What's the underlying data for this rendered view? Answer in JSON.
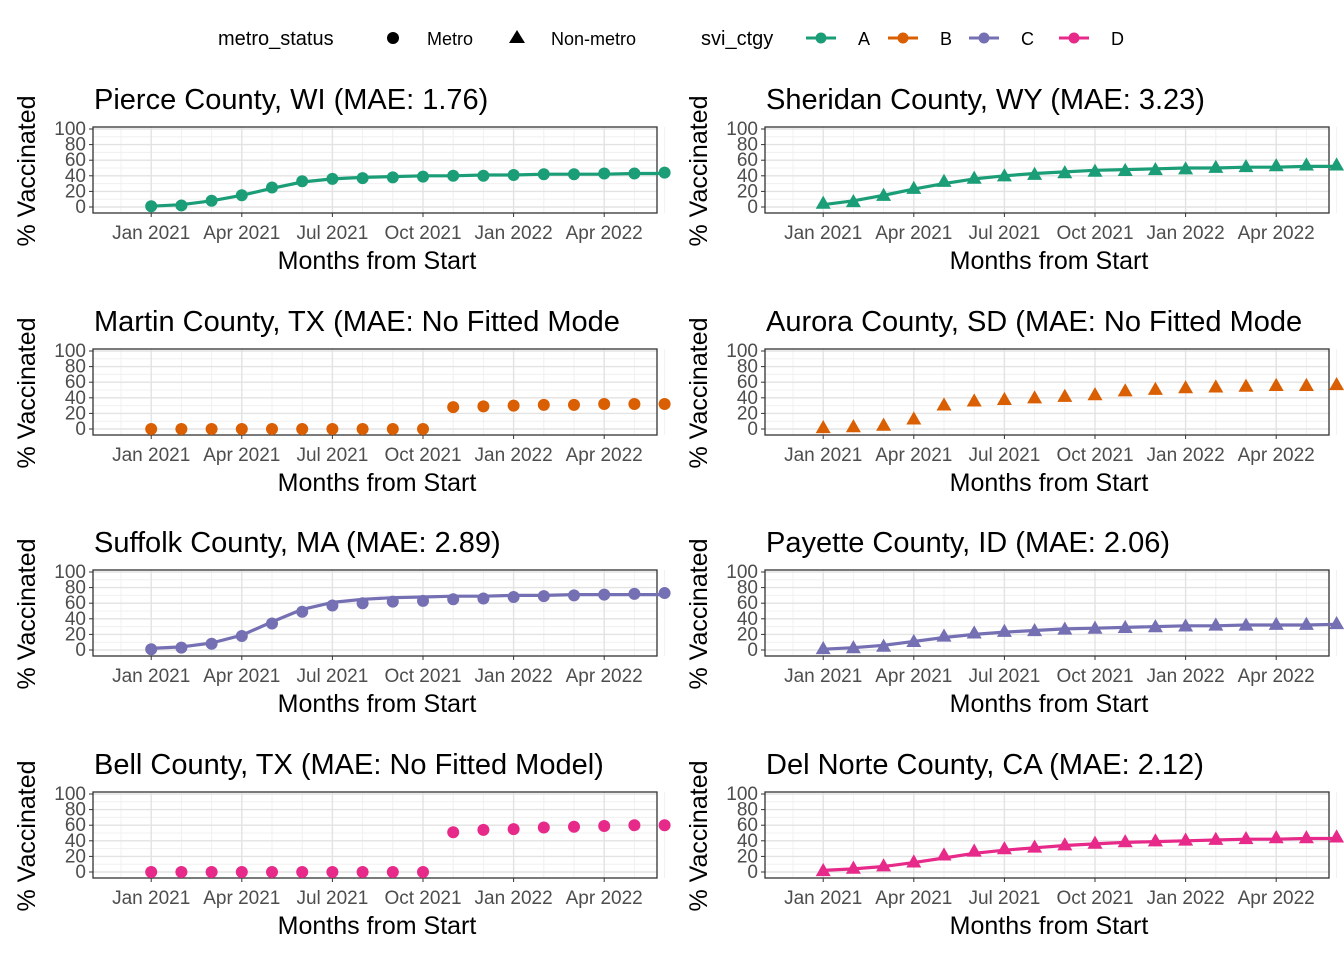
{
  "legend": {
    "shape_title": "metro_status",
    "shape_items": [
      {
        "label": "Metro",
        "shape": "circle"
      },
      {
        "label": "Non-metro",
        "shape": "triangle"
      }
    ],
    "color_title": "svi_ctgy",
    "color_items": [
      {
        "label": "A",
        "color": "#1B9E77"
      },
      {
        "label": "B",
        "color": "#D95F02"
      },
      {
        "label": "C",
        "color": "#7570B3"
      },
      {
        "label": "D",
        "color": "#E7298A"
      }
    ]
  },
  "axes": {
    "xlabel": "Months from Start",
    "ylabel": "% Vaccinated",
    "x_ticks": [
      "Jan 2021",
      "Apr 2021",
      "Jul 2021",
      "Oct 2021",
      "Jan 2022",
      "Apr 2022"
    ],
    "y_ticks": [
      "0",
      "20",
      "40",
      "60",
      "80",
      "100"
    ]
  },
  "chart_data": [
    {
      "type": "line",
      "title": "Pierce County, WI (MAE: 1.76)",
      "xlabel": "Months from Start",
      "ylabel": "% Vaccinated",
      "ylim": [
        0,
        100
      ],
      "svi_ctgy": "A",
      "metro_status": "Metro",
      "x": [
        "2020-12",
        "2021-01",
        "2021-02",
        "2021-03",
        "2021-04",
        "2021-05",
        "2021-06",
        "2021-07",
        "2021-08",
        "2021-09",
        "2021-10",
        "2021-11",
        "2021-12",
        "2022-01",
        "2022-02",
        "2022-03",
        "2022-04",
        "2022-05",
        "2022-06"
      ],
      "observed": [
        null,
        1,
        2,
        8,
        15,
        25,
        33,
        36,
        37,
        38,
        39,
        40,
        40,
        41,
        42,
        42,
        43,
        43,
        44
      ],
      "fitted": [
        null,
        1,
        3,
        8,
        15,
        24,
        32,
        36,
        38,
        39,
        40,
        40,
        41,
        41,
        42,
        42,
        42,
        43,
        43
      ]
    },
    {
      "type": "line",
      "title": "Sheridan County, WY (MAE: 3.23)",
      "xlabel": "Months from Start",
      "ylabel": "% Vaccinated",
      "ylim": [
        0,
        100
      ],
      "svi_ctgy": "A",
      "metro_status": "Non-metro",
      "x": [
        "2020-12",
        "2021-01",
        "2021-02",
        "2021-03",
        "2021-04",
        "2021-05",
        "2021-06",
        "2021-07",
        "2021-08",
        "2021-09",
        "2021-10",
        "2021-11",
        "2021-12",
        "2022-01",
        "2022-02",
        "2022-03",
        "2022-04",
        "2022-05",
        "2022-06"
      ],
      "observed": [
        null,
        5,
        7,
        15,
        24,
        33,
        37,
        40,
        42,
        44,
        46,
        47,
        48,
        49,
        51,
        52,
        53,
        54,
        54
      ],
      "fitted": [
        null,
        3,
        8,
        15,
        23,
        30,
        36,
        40,
        43,
        45,
        47,
        48,
        49,
        50,
        50,
        51,
        51,
        52,
        52
      ]
    },
    {
      "type": "scatter",
      "title": "Martin County, TX (MAE: No Fitted Mode",
      "xlabel": "Months from Start",
      "ylabel": "% Vaccinated",
      "ylim": [
        0,
        100
      ],
      "svi_ctgy": "B",
      "metro_status": "Metro",
      "x": [
        "2020-12",
        "2021-01",
        "2021-02",
        "2021-03",
        "2021-04",
        "2021-05",
        "2021-06",
        "2021-07",
        "2021-08",
        "2021-09",
        "2021-10",
        "2021-11",
        "2021-12",
        "2022-01",
        "2022-02",
        "2022-03",
        "2022-04",
        "2022-05",
        "2022-06"
      ],
      "observed": [
        null,
        0,
        0,
        0,
        0,
        0,
        0,
        0,
        0,
        0,
        0,
        28,
        29,
        30,
        31,
        31,
        32,
        32,
        32
      ]
    },
    {
      "type": "scatter",
      "title": "Aurora County, SD (MAE: No Fitted Mode",
      "xlabel": "Months from Start",
      "ylabel": "% Vaccinated",
      "ylim": [
        0,
        100
      ],
      "svi_ctgy": "B",
      "metro_status": "Non-metro",
      "x": [
        "2020-12",
        "2021-01",
        "2021-02",
        "2021-03",
        "2021-04",
        "2021-05",
        "2021-06",
        "2021-07",
        "2021-08",
        "2021-09",
        "2021-10",
        "2021-11",
        "2021-12",
        "2022-01",
        "2022-02",
        "2022-03",
        "2022-04",
        "2022-05",
        "2022-06"
      ],
      "observed": [
        null,
        2,
        3,
        5,
        13,
        31,
        36,
        38,
        40,
        42,
        44,
        49,
        51,
        53,
        54,
        55,
        56,
        56,
        57
      ]
    },
    {
      "type": "line",
      "title": "Suffolk County, MA (MAE: 2.89)",
      "xlabel": "Months from Start",
      "ylabel": "% Vaccinated",
      "ylim": [
        0,
        100
      ],
      "svi_ctgy": "C",
      "metro_status": "Metro",
      "x": [
        "2020-12",
        "2021-01",
        "2021-02",
        "2021-03",
        "2021-04",
        "2021-05",
        "2021-06",
        "2021-07",
        "2021-08",
        "2021-09",
        "2021-10",
        "2021-11",
        "2021-12",
        "2022-01",
        "2022-02",
        "2022-03",
        "2022-04",
        "2022-05",
        "2022-06"
      ],
      "observed": [
        null,
        1,
        3,
        8,
        18,
        34,
        49,
        57,
        60,
        62,
        63,
        65,
        66,
        68,
        69,
        70,
        71,
        72,
        73
      ],
      "fitted": [
        null,
        2,
        4,
        9,
        19,
        36,
        52,
        61,
        65,
        67,
        68,
        69,
        69,
        70,
        70,
        71,
        71,
        71,
        71
      ]
    },
    {
      "type": "line",
      "title": "Payette County, ID (MAE: 2.06)",
      "xlabel": "Months from Start",
      "ylabel": "% Vaccinated",
      "ylim": [
        0,
        100
      ],
      "svi_ctgy": "C",
      "metro_status": "Non-metro",
      "x": [
        "2020-12",
        "2021-01",
        "2021-02",
        "2021-03",
        "2021-04",
        "2021-05",
        "2021-06",
        "2021-07",
        "2021-08",
        "2021-09",
        "2021-10",
        "2021-11",
        "2021-12",
        "2022-01",
        "2022-02",
        "2022-03",
        "2022-04",
        "2022-05",
        "2022-06"
      ],
      "observed": [
        null,
        2,
        3,
        5,
        11,
        18,
        22,
        24,
        25,
        27,
        28,
        29,
        30,
        31,
        32,
        32,
        33,
        33,
        34
      ],
      "fitted": [
        null,
        1,
        3,
        6,
        11,
        16,
        20,
        23,
        25,
        27,
        28,
        29,
        30,
        31,
        31,
        32,
        32,
        32,
        33
      ]
    },
    {
      "type": "scatter",
      "title": "Bell County, TX (MAE: No Fitted Model)",
      "xlabel": "Months from Start",
      "ylabel": "% Vaccinated",
      "ylim": [
        0,
        100
      ],
      "svi_ctgy": "D",
      "metro_status": "Metro",
      "x": [
        "2020-12",
        "2021-01",
        "2021-02",
        "2021-03",
        "2021-04",
        "2021-05",
        "2021-06",
        "2021-07",
        "2021-08",
        "2021-09",
        "2021-10",
        "2021-11",
        "2021-12",
        "2022-01",
        "2022-02",
        "2022-03",
        "2022-04",
        "2022-05",
        "2022-06"
      ],
      "observed": [
        null,
        0,
        0,
        0,
        0,
        0,
        0,
        0,
        0,
        0,
        0,
        51,
        54,
        55,
        57,
        58,
        59,
        60,
        60
      ]
    },
    {
      "type": "line",
      "title": "Del Norte County, CA (MAE: 2.12)",
      "xlabel": "Months from Start",
      "ylabel": "% Vaccinated",
      "ylim": [
        0,
        100
      ],
      "svi_ctgy": "D",
      "metro_status": "Non-metro",
      "x": [
        "2020-12",
        "2021-01",
        "2021-02",
        "2021-03",
        "2021-04",
        "2021-05",
        "2021-06",
        "2021-07",
        "2021-08",
        "2021-09",
        "2021-10",
        "2021-11",
        "2021-12",
        "2022-01",
        "2022-02",
        "2022-03",
        "2022-04",
        "2022-05",
        "2022-06"
      ],
      "observed": [
        null,
        2,
        5,
        8,
        13,
        22,
        27,
        30,
        32,
        35,
        37,
        39,
        40,
        41,
        42,
        43,
        44,
        44,
        45
      ],
      "fitted": [
        null,
        2,
        4,
        7,
        12,
        18,
        24,
        28,
        31,
        34,
        36,
        38,
        39,
        40,
        41,
        42,
        42,
        43,
        43
      ]
    }
  ]
}
